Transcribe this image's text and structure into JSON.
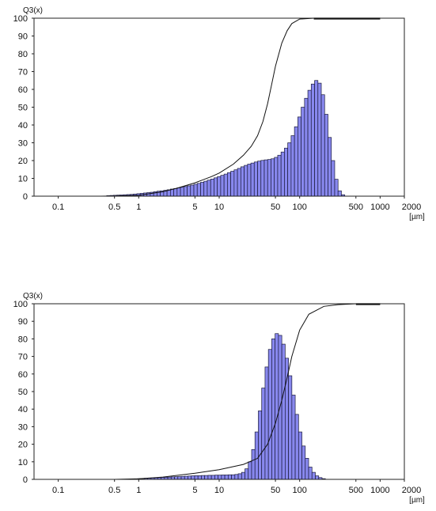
{
  "chart_data": [
    {
      "type": "bar",
      "title": "",
      "ylabel": "Q3(x)",
      "xlabel": "[µm]",
      "x_scale": "log",
      "xlim": [
        0.05,
        2000
      ],
      "ylim": [
        0,
        100
      ],
      "x_ticks": [
        {
          "v": 0.1,
          "label": "0.1"
        },
        {
          "v": 0.5,
          "label": "0.5"
        },
        {
          "v": 1,
          "label": "1"
        },
        {
          "v": 5,
          "label": "5"
        },
        {
          "v": 10,
          "label": "10"
        },
        {
          "v": 50,
          "label": "50"
        },
        {
          "v": 100,
          "label": "100"
        },
        {
          "v": 500,
          "label": "500"
        },
        {
          "v": 1000,
          "label": "1000"
        },
        {
          "v": 2000,
          "label": "2000"
        }
      ],
      "y_ticks": [
        {
          "v": 0,
          "label": "0"
        },
        {
          "v": 10,
          "label": "10"
        },
        {
          "v": 20,
          "label": "20"
        },
        {
          "v": 30,
          "label": "30"
        },
        {
          "v": 40,
          "label": "40"
        },
        {
          "v": 50,
          "label": "50"
        },
        {
          "v": 60,
          "label": "60"
        },
        {
          "v": 70,
          "label": "70"
        },
        {
          "v": 80,
          "label": "80"
        },
        {
          "v": 90,
          "label": "90"
        },
        {
          "v": 100,
          "label": "100"
        }
      ],
      "grid": false,
      "bar_color": "#8888ee",
      "histogram": {
        "x_start": 0.4,
        "bins_per_decade": 24,
        "values": [
          0.3,
          0.4,
          0.5,
          0.6,
          0.7,
          0.8,
          0.9,
          1.0,
          1.2,
          1.4,
          1.6,
          1.8,
          2.0,
          2.2,
          2.5,
          2.8,
          3.0,
          3.3,
          3.6,
          4.0,
          4.3,
          4.7,
          5.0,
          5.4,
          5.8,
          6.2,
          6.7,
          7.2,
          7.8,
          8.4,
          9.0,
          9.6,
          10.3,
          11.0,
          11.7,
          12.4,
          13.2,
          14.0,
          14.8,
          15.6,
          16.5,
          17.3,
          18.0,
          18.6,
          19.2,
          19.7,
          20.1,
          20.4,
          20.6,
          21.0,
          21.8,
          23.0,
          24.8,
          27.0,
          30.0,
          34.0,
          39.0,
          44.5,
          50.0,
          55.0,
          59.5,
          63.0,
          65.0,
          63.5,
          57.0,
          46.0,
          33.0,
          20.0,
          9.5,
          3.0,
          0.8
        ]
      },
      "cumulative_curve": [
        [
          0.3,
          0
        ],
        [
          0.5,
          0.1
        ],
        [
          1,
          0.5
        ],
        [
          2,
          2.5
        ],
        [
          3,
          4.5
        ],
        [
          5,
          7.5
        ],
        [
          8,
          11
        ],
        [
          10,
          13
        ],
        [
          15,
          18
        ],
        [
          20,
          23
        ],
        [
          25,
          28
        ],
        [
          30,
          34
        ],
        [
          35,
          42
        ],
        [
          40,
          52
        ],
        [
          45,
          63
        ],
        [
          50,
          73
        ],
        [
          60,
          86
        ],
        [
          70,
          93
        ],
        [
          80,
          97
        ],
        [
          100,
          99.5
        ],
        [
          150,
          100
        ],
        [
          1000,
          100
        ]
      ],
      "cumulative_curve_top": [
        [
          150,
          100
        ],
        [
          1000,
          100
        ]
      ]
    },
    {
      "type": "bar",
      "title": "",
      "ylabel": "Q3(x)",
      "xlabel": "[µm]",
      "x_scale": "log",
      "xlim": [
        0.05,
        2000
      ],
      "ylim": [
        0,
        100
      ],
      "x_ticks": [
        {
          "v": 0.1,
          "label": "0.1"
        },
        {
          "v": 0.5,
          "label": "0.5"
        },
        {
          "v": 1,
          "label": "1"
        },
        {
          "v": 5,
          "label": "5"
        },
        {
          "v": 10,
          "label": "10"
        },
        {
          "v": 50,
          "label": "50"
        },
        {
          "v": 100,
          "label": "100"
        },
        {
          "v": 500,
          "label": "500"
        },
        {
          "v": 1000,
          "label": "1000"
        },
        {
          "v": 2000,
          "label": "2000"
        }
      ],
      "y_ticks": [
        {
          "v": 0,
          "label": "0"
        },
        {
          "v": 10,
          "label": "10"
        },
        {
          "v": 20,
          "label": "20"
        },
        {
          "v": 30,
          "label": "30"
        },
        {
          "v": 40,
          "label": "40"
        },
        {
          "v": 50,
          "label": "50"
        },
        {
          "v": 60,
          "label": "60"
        },
        {
          "v": 70,
          "label": "70"
        },
        {
          "v": 80,
          "label": "80"
        },
        {
          "v": 90,
          "label": "90"
        },
        {
          "v": 100,
          "label": "100"
        }
      ],
      "grid": false,
      "bar_color": "#8888ee",
      "histogram": {
        "x_start": 0.8,
        "bins_per_decade": 24,
        "values": [
          0.2,
          0.3,
          0.4,
          0.5,
          0.6,
          0.7,
          0.8,
          0.9,
          1.0,
          1.1,
          1.2,
          1.3,
          1.4,
          1.5,
          1.6,
          1.7,
          1.8,
          1.9,
          2.0,
          2.1,
          2.1,
          2.2,
          2.2,
          2.3,
          2.3,
          2.4,
          2.4,
          2.5,
          2.5,
          2.6,
          2.6,
          2.8,
          3.2,
          4.0,
          6.0,
          10.0,
          17.0,
          27.0,
          39.0,
          52.0,
          64.0,
          74.0,
          80.0,
          83.0,
          82.0,
          77.0,
          69.0,
          59.0,
          48.0,
          37.0,
          27.0,
          19.0,
          12.0,
          7.0,
          4.0,
          2.0,
          1.0,
          0.4
        ]
      },
      "cumulative_curve": [
        [
          0.5,
          0
        ],
        [
          1,
          0.3
        ],
        [
          2,
          1.3
        ],
        [
          5,
          3.5
        ],
        [
          10,
          5.5
        ],
        [
          20,
          8.5
        ],
        [
          30,
          12
        ],
        [
          40,
          20
        ],
        [
          50,
          32
        ],
        [
          60,
          45
        ],
        [
          70,
          58
        ],
        [
          80,
          70
        ],
        [
          100,
          85
        ],
        [
          130,
          94
        ],
        [
          200,
          98.5
        ],
        [
          300,
          99.5
        ],
        [
          500,
          100
        ],
        [
          1000,
          100
        ]
      ],
      "cumulative_curve_top": [
        [
          500,
          100
        ],
        [
          1000,
          100
        ]
      ]
    }
  ]
}
